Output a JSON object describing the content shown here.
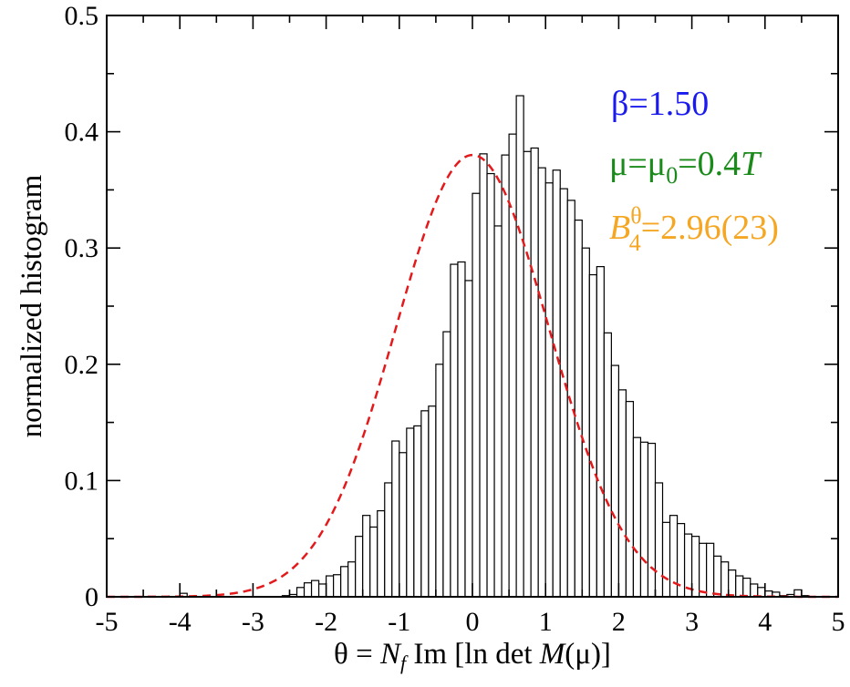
{
  "chart_data": {
    "type": "bar",
    "xlabel_parts": {
      "theta": "θ",
      "eq": " = ",
      "Nf_N": "N",
      "Nf_sub": "f",
      "im": " Im [ln det ",
      "M": "M",
      "mu": "(μ)]"
    },
    "ylabel": "normalized histogram",
    "xlim": [
      -5,
      5
    ],
    "ylim": [
      0,
      0.5
    ],
    "x_ticks": [
      "-5",
      "-4",
      "-3",
      "-2",
      "-1",
      "0",
      "1",
      "2",
      "3",
      "4",
      "5"
    ],
    "y_ticks": [
      "0",
      "0.1",
      "0.2",
      "0.3",
      "0.4",
      "0.5"
    ],
    "bin_start": -5.0,
    "bin_width": 0.1,
    "values": [
      0,
      0,
      0,
      0,
      0,
      0,
      0,
      0,
      0,
      0,
      0.003,
      0,
      0,
      0,
      0,
      0,
      0,
      0,
      0,
      0,
      0,
      0,
      0,
      0,
      0.001,
      0.002,
      0.008,
      0.012,
      0.014,
      0.011,
      0.018,
      0.019,
      0.026,
      0.03,
      0.052,
      0.07,
      0.06,
      0.074,
      0.098,
      0.134,
      0.124,
      0.145,
      0.147,
      0.16,
      0.164,
      0.2,
      0.228,
      0.286,
      0.288,
      0.272,
      0.347,
      0.381,
      0.364,
      0.319,
      0.38,
      0.398,
      0.431,
      0.383,
      0.386,
      0.369,
      0.356,
      0.367,
      0.351,
      0.341,
      0.324,
      0.3,
      0.277,
      0.284,
      0.227,
      0.199,
      0.178,
      0.168,
      0.137,
      0.133,
      0.132,
      0.098,
      0.064,
      0.07,
      0.063,
      0.054,
      0.052,
      0.046,
      0.046,
      0.035,
      0.03,
      0.023,
      0.018,
      0.016,
      0.011,
      0.008,
      0.005,
      0.004,
      0.001,
      0.002,
      0.006,
      0.001,
      0,
      0,
      0,
      0
    ],
    "fit": {
      "type": "gaussian",
      "amplitude": 0.38,
      "mean": 0.0,
      "sigma": 1.05,
      "color": "#e31a1c",
      "style": "dashed"
    },
    "annotations": {
      "beta": {
        "text": "β=1.50",
        "color": "#1a1aee"
      },
      "mu": {
        "part1": "μ=μ",
        "sub": "0",
        "part2": "=0.4",
        "T": "T",
        "color": "#1a8a1a"
      },
      "b4": {
        "B": "B",
        "sup": "θ",
        "sub": "4",
        "rest": "=2.96(23)",
        "color": "#f5a623"
      }
    },
    "colors": {
      "bar_fill": "#ffffff",
      "bar_stroke": "#000000",
      "axis": "#000000"
    }
  }
}
